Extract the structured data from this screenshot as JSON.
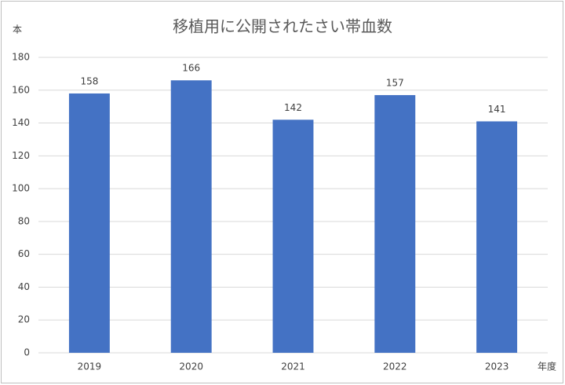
{
  "chart_data": {
    "type": "bar",
    "title": "移植用に公開されたさい帯血数",
    "y_label": "本",
    "x_label": "年度",
    "categories": [
      "2019",
      "2020",
      "2021",
      "2022",
      "2023"
    ],
    "values": [
      158,
      166,
      142,
      157,
      141
    ],
    "color": "#4472c4",
    "ylim": [
      0,
      180
    ],
    "yticks": [
      0,
      20,
      40,
      60,
      80,
      100,
      120,
      140,
      160,
      180
    ],
    "grid": true
  }
}
